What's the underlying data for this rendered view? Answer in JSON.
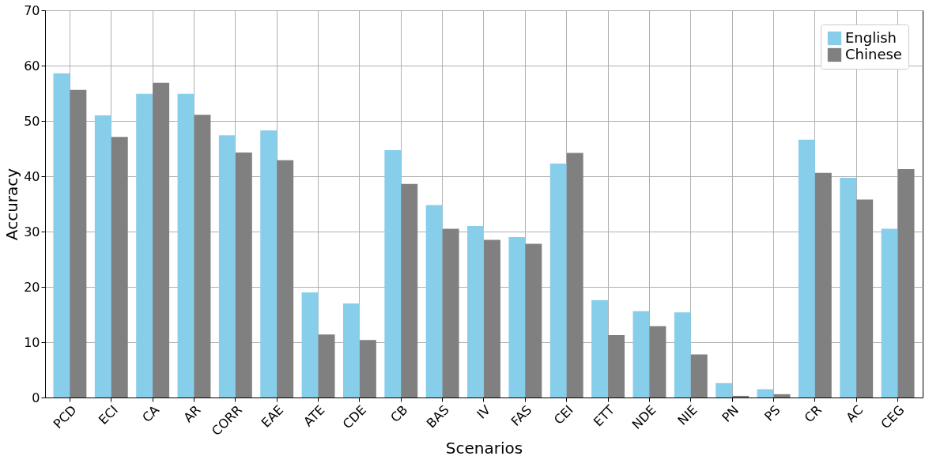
{
  "chart_data": {
    "type": "bar",
    "xlabel": "Scenarios",
    "ylabel": "Accuracy",
    "categories": [
      "PCD",
      "ECI",
      "CA",
      "AR",
      "CORR",
      "EAE",
      "ATE",
      "CDE",
      "CB",
      "BAS",
      "IV",
      "FAS",
      "CEI",
      "ETT",
      "NDE",
      "NIE",
      "PN",
      "PS",
      "CR",
      "AC",
      "CEG"
    ],
    "series": [
      {
        "name": "English",
        "color": "#87ceeb",
        "values": [
          58.6,
          51.0,
          54.9,
          54.9,
          47.4,
          48.3,
          19.0,
          17.0,
          44.7,
          34.8,
          31.0,
          29.0,
          42.3,
          17.6,
          15.6,
          15.4,
          2.6,
          1.5,
          46.6,
          39.7,
          30.5
        ]
      },
      {
        "name": "Chinese",
        "color": "#808080",
        "values": [
          55.6,
          47.1,
          56.9,
          51.1,
          44.3,
          42.9,
          11.4,
          10.4,
          38.6,
          30.5,
          28.5,
          27.8,
          44.2,
          11.3,
          12.9,
          7.8,
          0.3,
          0.6,
          40.6,
          35.8,
          41.3
        ]
      }
    ],
    "ylim": [
      0,
      70
    ],
    "yticks": [
      0,
      10,
      20,
      30,
      40,
      50,
      60,
      70
    ],
    "grid": true,
    "legend": "top right"
  }
}
